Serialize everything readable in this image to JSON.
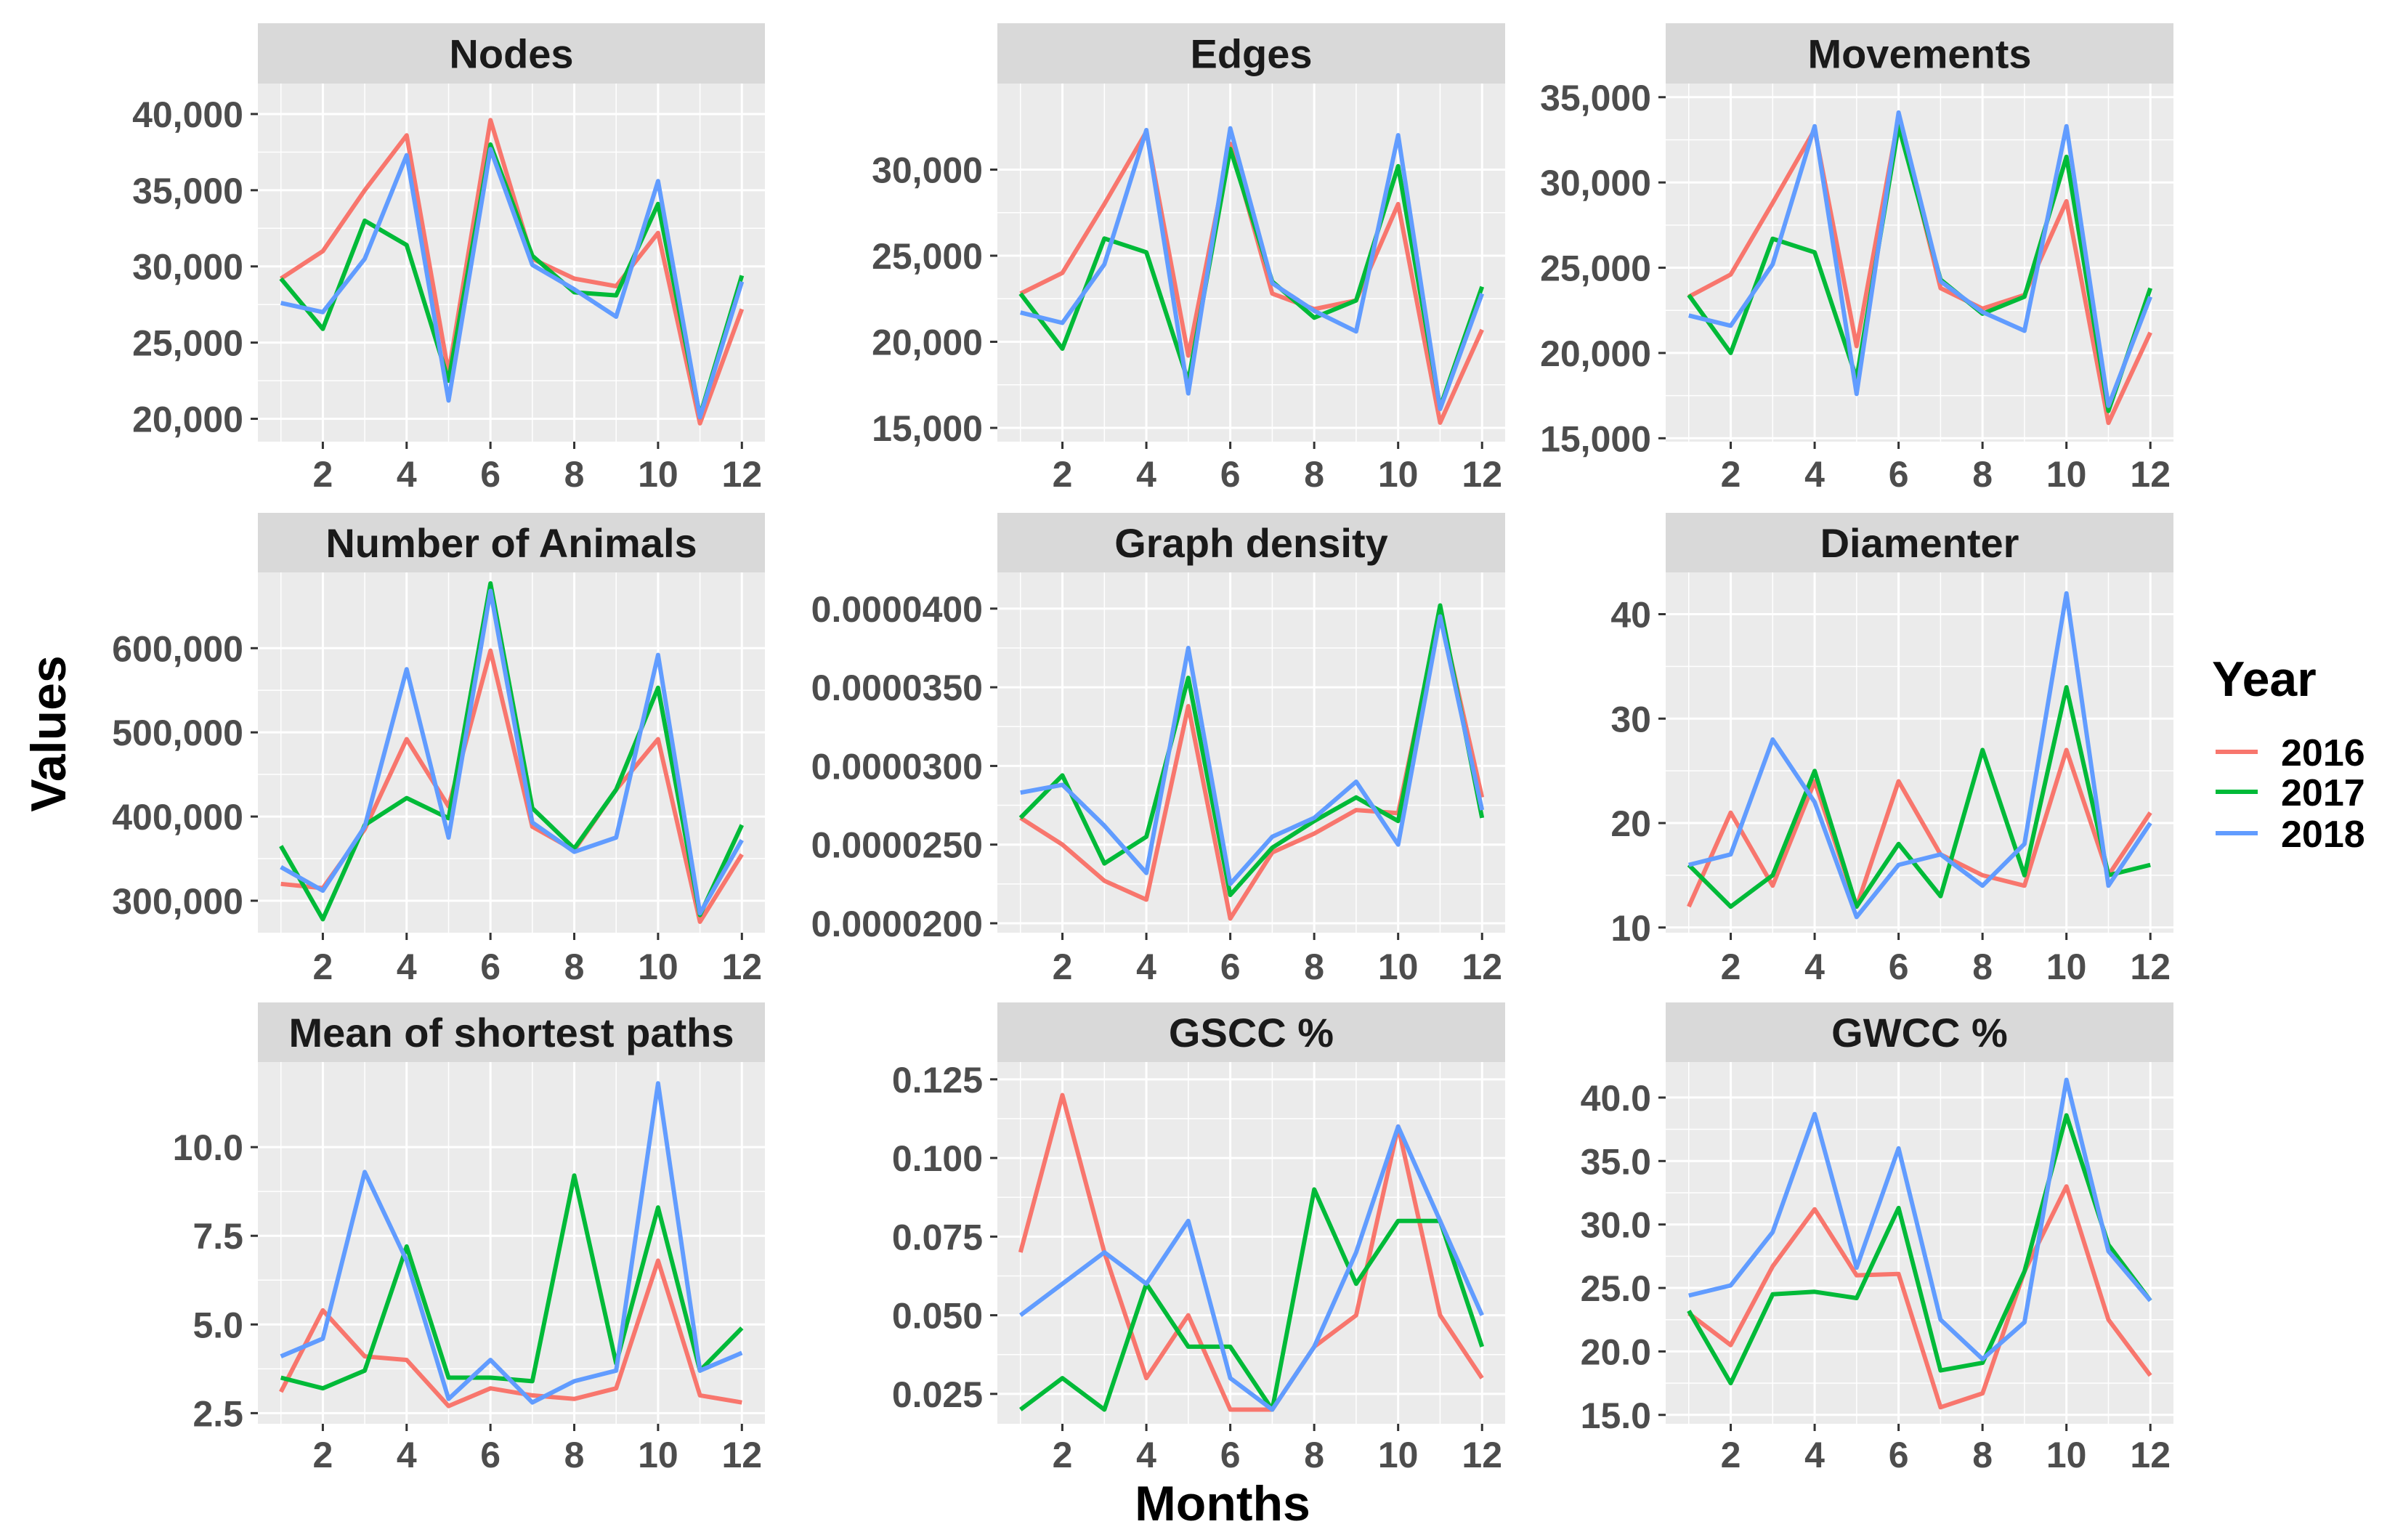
{
  "figure": {
    "xlabel": "Months",
    "ylabel": "Values",
    "legend": {
      "title": "Year",
      "placement": "right",
      "entries": [
        {
          "label": "2016",
          "color": "#F8766D"
        },
        {
          "label": "2017",
          "color": "#00BA38"
        },
        {
          "label": "2018",
          "color": "#619CFF"
        }
      ]
    },
    "colors": {
      "panel_background": "#EBEBEB",
      "strip_background": "#D9D9D9",
      "grid": "#FFFFFF",
      "tick_text": "#4D4D4D"
    }
  },
  "chart_data": [
    {
      "type": "line",
      "title": "Nodes",
      "xlabel": "Months",
      "ylabel": "Values",
      "x": [
        1,
        2,
        3,
        4,
        5,
        6,
        7,
        8,
        9,
        10,
        11,
        12
      ],
      "xlim": [
        0.45,
        12.55
      ],
      "ylim": [
        18500,
        42000
      ],
      "xticks": [
        2,
        4,
        6,
        8,
        10,
        12
      ],
      "xtick_labels": [
        "2",
        "4",
        "6",
        "8",
        "10",
        "12"
      ],
      "yticks": [
        20000,
        25000,
        30000,
        35000,
        40000
      ],
      "ytick_labels": [
        "20,000",
        "25,000",
        "30,000",
        "35,000",
        "40,000"
      ],
      "series": [
        {
          "name": "2016",
          "values": [
            29200,
            31000,
            35000,
            38600,
            23000,
            39600,
            30500,
            29200,
            28700,
            32200,
            19700,
            27200
          ]
        },
        {
          "name": "2017",
          "values": [
            29200,
            25900,
            33000,
            31400,
            22500,
            38000,
            30700,
            28300,
            28100,
            34100,
            20200,
            29400
          ]
        },
        {
          "name": "2018",
          "values": [
            27600,
            27000,
            30500,
            37300,
            21200,
            37700,
            30100,
            28500,
            26700,
            35600,
            20100,
            29000
          ]
        }
      ]
    },
    {
      "type": "line",
      "title": "Edges",
      "xlabel": "Months",
      "ylabel": "Values",
      "x": [
        1,
        2,
        3,
        4,
        5,
        6,
        7,
        8,
        9,
        10,
        11,
        12
      ],
      "xlim": [
        0.45,
        12.55
      ],
      "ylim": [
        14200,
        35000
      ],
      "xticks": [
        2,
        4,
        6,
        8,
        10,
        12
      ],
      "xtick_labels": [
        "2",
        "4",
        "6",
        "8",
        "10",
        "12"
      ],
      "yticks": [
        15000,
        20000,
        25000,
        30000
      ],
      "ytick_labels": [
        "15,000",
        "20,000",
        "25,000",
        "30,000"
      ],
      "series": [
        {
          "name": "2016",
          "values": [
            22800,
            24000,
            28000,
            32200,
            19200,
            31500,
            22800,
            21900,
            22400,
            28000,
            15300,
            20700
          ]
        },
        {
          "name": "2017",
          "values": [
            22800,
            19600,
            26000,
            25200,
            17700,
            31200,
            23500,
            21400,
            22400,
            30200,
            16200,
            23200
          ]
        },
        {
          "name": "2018",
          "values": [
            21700,
            21100,
            24500,
            32300,
            17000,
            32400,
            23400,
            21800,
            20600,
            32000,
            16100,
            22800
          ]
        }
      ]
    },
    {
      "type": "line",
      "title": "Movements",
      "xlabel": "Months",
      "ylabel": "Values",
      "x": [
        1,
        2,
        3,
        4,
        5,
        6,
        7,
        8,
        9,
        10,
        11,
        12
      ],
      "xlim": [
        0.45,
        12.55
      ],
      "ylim": [
        14800,
        35800
      ],
      "xticks": [
        2,
        4,
        6,
        8,
        10,
        12
      ],
      "xtick_labels": [
        "2",
        "4",
        "6",
        "8",
        "10",
        "12"
      ],
      "yticks": [
        15000,
        20000,
        25000,
        30000,
        35000
      ],
      "ytick_labels": [
        "15,000",
        "20,000",
        "25,000",
        "30,000",
        "35,000"
      ],
      "series": [
        {
          "name": "2016",
          "values": [
            23300,
            24600,
            28800,
            33100,
            20400,
            33800,
            23800,
            22600,
            23400,
            28900,
            15900,
            21200
          ]
        },
        {
          "name": "2017",
          "values": [
            23400,
            20000,
            26700,
            25900,
            18500,
            33300,
            24300,
            22300,
            23300,
            31500,
            16600,
            23800
          ]
        },
        {
          "name": "2018",
          "values": [
            22200,
            21600,
            25200,
            33300,
            17600,
            34100,
            24200,
            22400,
            21300,
            33300,
            16900,
            23300
          ]
        }
      ]
    },
    {
      "type": "line",
      "title": "Number of Animals",
      "xlabel": "Months",
      "ylabel": "Values",
      "x": [
        1,
        2,
        3,
        4,
        5,
        6,
        7,
        8,
        9,
        10,
        11,
        12
      ],
      "xlim": [
        0.45,
        12.55
      ],
      "ylim": [
        262000,
        690000
      ],
      "xticks": [
        2,
        4,
        6,
        8,
        10,
        12
      ],
      "xtick_labels": [
        "2",
        "4",
        "6",
        "8",
        "10",
        "12"
      ],
      "yticks": [
        300000,
        400000,
        500000,
        600000
      ],
      "ytick_labels": [
        "300,000",
        "400,000",
        "500,000",
        "600,000"
      ],
      "series": [
        {
          "name": "2016",
          "values": [
            320000,
            315000,
            385000,
            492000,
            412000,
            597000,
            388000,
            360000,
            432000,
            492000,
            275000,
            355000
          ]
        },
        {
          "name": "2017",
          "values": [
            365000,
            278000,
            390000,
            422000,
            398000,
            677000,
            410000,
            362000,
            432000,
            553000,
            283000,
            390000
          ]
        },
        {
          "name": "2018",
          "values": [
            340000,
            312000,
            388000,
            575000,
            375000,
            668000,
            393000,
            358000,
            375000,
            592000,
            285000,
            372000
          ]
        }
      ]
    },
    {
      "type": "line",
      "title": "Graph density",
      "xlabel": "Months",
      "ylabel": "Values",
      "x": [
        1,
        2,
        3,
        4,
        5,
        6,
        7,
        8,
        9,
        10,
        11,
        12
      ],
      "xlim": [
        0.45,
        12.55
      ],
      "ylim": [
        1.94e-05,
        4.23e-05
      ],
      "xticks": [
        2,
        4,
        6,
        8,
        10,
        12
      ],
      "xtick_labels": [
        "2",
        "4",
        "6",
        "8",
        "10",
        "12"
      ],
      "yticks": [
        2e-05,
        2.5e-05,
        3e-05,
        3.5e-05,
        4e-05
      ],
      "ytick_labels": [
        "0.0000200",
        "0.0000250",
        "0.0000300",
        "0.0000350",
        "0.0000400"
      ],
      "series": [
        {
          "name": "2016",
          "values": [
            2.67e-05,
            2.5e-05,
            2.27e-05,
            2.15e-05,
            3.38e-05,
            2.03e-05,
            2.45e-05,
            2.57e-05,
            2.72e-05,
            2.7e-05,
            3.98e-05,
            2.8e-05
          ]
        },
        {
          "name": "2017",
          "values": [
            2.67e-05,
            2.94e-05,
            2.38e-05,
            2.55e-05,
            3.56e-05,
            2.18e-05,
            2.48e-05,
            2.65e-05,
            2.8e-05,
            2.65e-05,
            4.02e-05,
            2.67e-05
          ]
        },
        {
          "name": "2018",
          "values": [
            2.83e-05,
            2.88e-05,
            2.62e-05,
            2.32e-05,
            3.75e-05,
            2.25e-05,
            2.55e-05,
            2.67e-05,
            2.9e-05,
            2.5e-05,
            3.95e-05,
            2.72e-05
          ]
        }
      ]
    },
    {
      "type": "line",
      "title": "Diamenter",
      "xlabel": "Months",
      "ylabel": "Values",
      "x": [
        1,
        2,
        3,
        4,
        5,
        6,
        7,
        8,
        9,
        10,
        11,
        12
      ],
      "xlim": [
        0.45,
        12.55
      ],
      "ylim": [
        9.5,
        44
      ],
      "xticks": [
        2,
        4,
        6,
        8,
        10,
        12
      ],
      "xtick_labels": [
        "2",
        "4",
        "6",
        "8",
        "10",
        "12"
      ],
      "yticks": [
        10,
        20,
        30,
        40
      ],
      "ytick_labels": [
        "10",
        "20",
        "30",
        "40"
      ],
      "series": [
        {
          "name": "2016",
          "values": [
            12,
            21,
            14,
            24,
            12,
            24,
            17,
            15,
            14,
            27,
            15,
            21
          ]
        },
        {
          "name": "2017",
          "values": [
            16,
            12,
            15,
            25,
            12,
            18,
            13,
            27,
            15,
            33,
            15,
            16
          ]
        },
        {
          "name": "2018",
          "values": [
            16,
            17,
            28,
            22,
            11,
            16,
            17,
            14,
            18,
            42,
            14,
            20
          ]
        }
      ]
    },
    {
      "type": "line",
      "title": "Mean of shortest paths",
      "xlabel": "Months",
      "ylabel": "Values",
      "x": [
        1,
        2,
        3,
        4,
        5,
        6,
        7,
        8,
        9,
        10,
        11,
        12
      ],
      "xlim": [
        0.45,
        12.55
      ],
      "ylim": [
        2.2,
        12.4
      ],
      "xticks": [
        2,
        4,
        6,
        8,
        10,
        12
      ],
      "xtick_labels": [
        "2",
        "4",
        "6",
        "8",
        "10",
        "12"
      ],
      "yticks": [
        2.5,
        5.0,
        7.5,
        10.0
      ],
      "ytick_labels": [
        "2.5",
        "5.0",
        "7.5",
        "10.0"
      ],
      "series": [
        {
          "name": "2016",
          "values": [
            3.1,
            5.4,
            4.1,
            4.0,
            2.7,
            3.2,
            3.0,
            2.9,
            3.2,
            6.8,
            3.0,
            2.8
          ]
        },
        {
          "name": "2017",
          "values": [
            3.5,
            3.2,
            3.7,
            7.2,
            3.5,
            3.5,
            3.4,
            9.2,
            3.9,
            8.3,
            3.7,
            4.9
          ]
        },
        {
          "name": "2018",
          "values": [
            4.1,
            4.6,
            9.3,
            6.8,
            2.9,
            4.0,
            2.8,
            3.4,
            3.7,
            11.8,
            3.7,
            4.2
          ]
        }
      ]
    },
    {
      "type": "line",
      "title": "GSCC %",
      "xlabel": "Months",
      "ylabel": "Values",
      "x": [
        1,
        2,
        3,
        4,
        5,
        6,
        7,
        8,
        9,
        10,
        11,
        12
      ],
      "xlim": [
        0.45,
        12.55
      ],
      "ylim": [
        0.0155,
        0.1305
      ],
      "xticks": [
        2,
        4,
        6,
        8,
        10,
        12
      ],
      "xtick_labels": [
        "2",
        "4",
        "6",
        "8",
        "10",
        "12"
      ],
      "yticks": [
        0.025,
        0.05,
        0.075,
        0.1,
        0.125
      ],
      "ytick_labels": [
        "0.025",
        "0.050",
        "0.075",
        "0.100",
        "0.125"
      ],
      "series": [
        {
          "name": "2016",
          "values": [
            0.07,
            0.12,
            0.07,
            0.03,
            0.05,
            0.02,
            0.02,
            0.04,
            0.05,
            0.11,
            0.05,
            0.03
          ]
        },
        {
          "name": "2017",
          "values": [
            0.02,
            0.03,
            0.02,
            0.06,
            0.04,
            0.04,
            0.02,
            0.09,
            0.06,
            0.08,
            0.08,
            0.04
          ]
        },
        {
          "name": "2018",
          "values": [
            0.05,
            0.06,
            0.07,
            0.06,
            0.08,
            0.03,
            0.02,
            0.04,
            0.07,
            0.11,
            0.08,
            0.05
          ]
        }
      ]
    },
    {
      "type": "line",
      "title": "GWCC %",
      "xlabel": "Months",
      "ylabel": "Values",
      "x": [
        1,
        2,
        3,
        4,
        5,
        6,
        7,
        8,
        9,
        10,
        11,
        12
      ],
      "xlim": [
        0.45,
        12.55
      ],
      "ylim": [
        14.3,
        42.8
      ],
      "xticks": [
        2,
        4,
        6,
        8,
        10,
        12
      ],
      "xtick_labels": [
        "2",
        "4",
        "6",
        "8",
        "10",
        "12"
      ],
      "yticks": [
        15,
        20,
        25,
        30,
        35,
        40
      ],
      "ytick_labels": [
        "15.0",
        "20.0",
        "25.0",
        "30.0",
        "35.0",
        "40.0"
      ],
      "series": [
        {
          "name": "2016",
          "values": [
            23.0,
            20.5,
            26.7,
            31.2,
            26.0,
            26.1,
            15.6,
            16.7,
            26.3,
            33.0,
            22.5,
            18.1
          ]
        },
        {
          "name": "2017",
          "values": [
            23.2,
            17.5,
            24.5,
            24.7,
            24.2,
            31.3,
            18.5,
            19.1,
            26.3,
            38.6,
            28.4,
            24.0
          ]
        },
        {
          "name": "2018",
          "values": [
            24.4,
            25.2,
            29.4,
            38.7,
            26.6,
            36.0,
            22.5,
            19.4,
            22.3,
            41.4,
            27.9,
            24.0
          ]
        }
      ]
    }
  ]
}
